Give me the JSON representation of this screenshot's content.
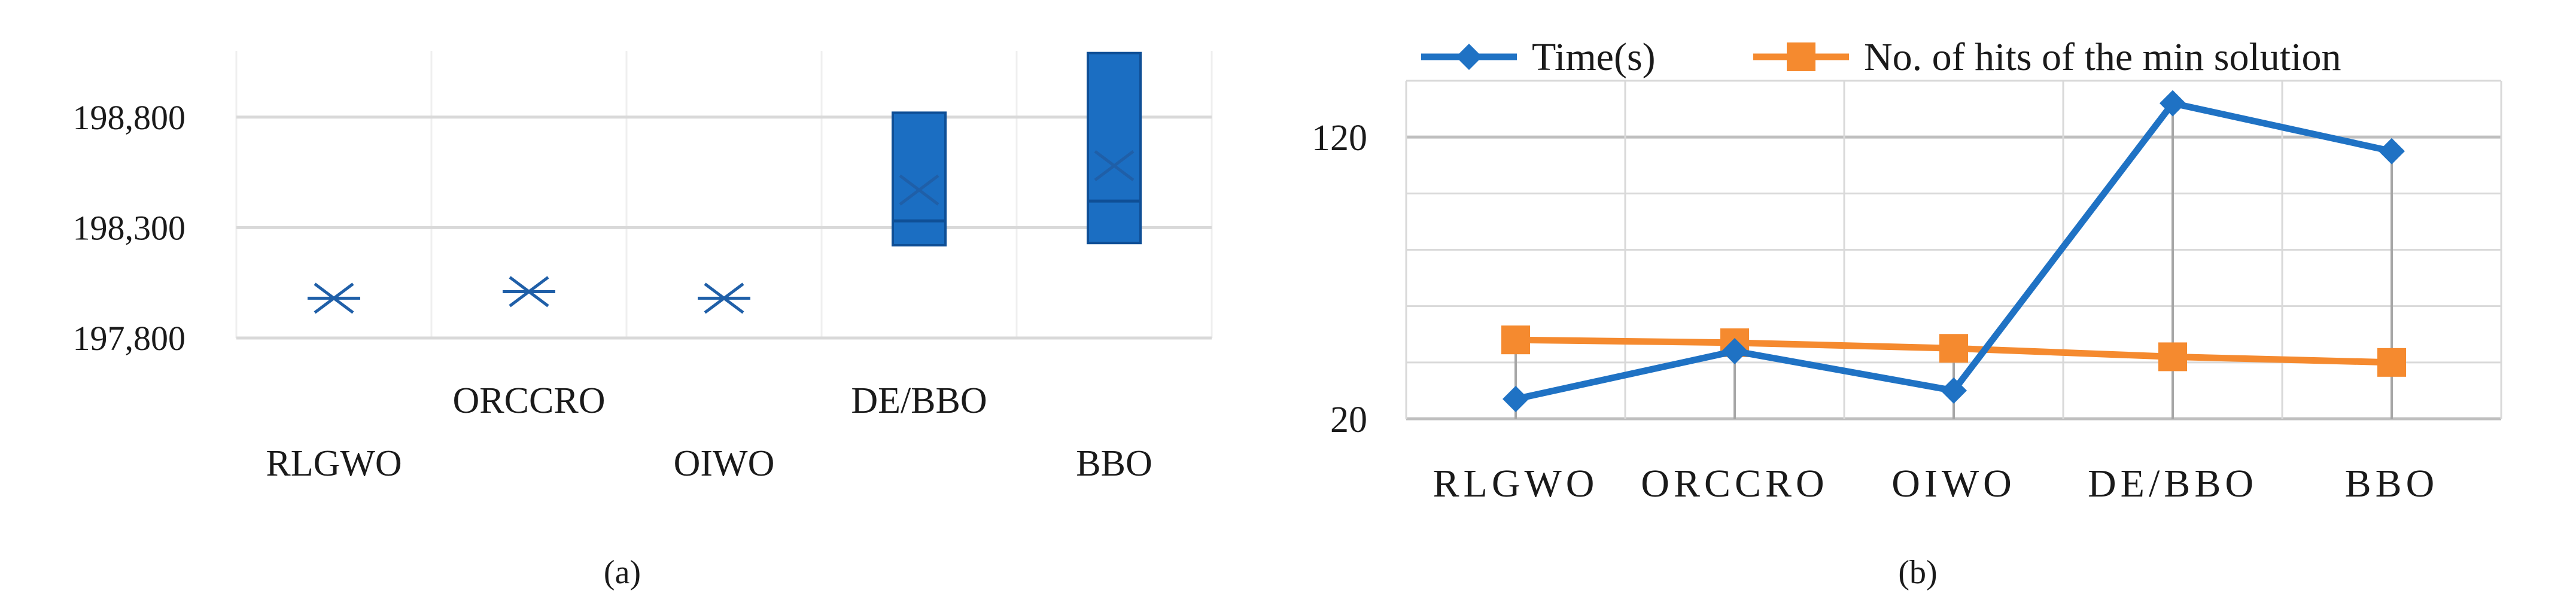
{
  "chart_data": [
    {
      "panel_label": "(a)",
      "type": "box",
      "categories": [
        "RLGWO",
        "ORCCRO",
        "OIWO",
        "DE/BBO",
        "BBO"
      ],
      "series": [
        {
          "values": [
            {
              "min": 197980,
              "q1": 197980,
              "median": 197980,
              "q3": 197980,
              "max": 197980,
              "mean": 197980
            },
            {
              "min": 198010,
              "q1": 198010,
              "median": 198010,
              "q3": 198010,
              "max": 198010,
              "mean": 198010
            },
            {
              "min": 197980,
              "q1": 197980,
              "median": 197980,
              "q3": 197980,
              "max": 197980,
              "mean": 197980
            },
            {
              "min": 198220,
              "q1": 198220,
              "median": 198330,
              "q3": 198820,
              "max": 198820,
              "mean": 198470
            },
            {
              "min": 198230,
              "q1": 198230,
              "median": 198420,
              "q3": 199090,
              "max": 199090,
              "mean": 198580
            }
          ]
        }
      ],
      "y_ticks": [
        "197,800",
        "198,300",
        "198,800"
      ],
      "y_tick_values": [
        197800,
        198300,
        198800
      ],
      "ylim": [
        197800,
        199100
      ],
      "grid": true,
      "colors": {
        "box": "#1b6ec2",
        "box_edge": "#0f4f96",
        "marker": "#1f5fa8",
        "grid": "#d9d9d9"
      }
    },
    {
      "panel_label": "(b)",
      "type": "line",
      "categories": [
        "RLGWO",
        "ORCCRO",
        "OIWO",
        "DE/BBO",
        "BBO"
      ],
      "series": [
        {
          "name": "Time(s)",
          "color": "#1f72c4",
          "marker": "diamond",
          "values": [
            27,
            44,
            30,
            132,
            115
          ]
        },
        {
          "name": "No. of hits of the min solution",
          "color": "#f58a2f",
          "marker": "square",
          "values": [
            48,
            47,
            45,
            42,
            40
          ]
        }
      ],
      "y_ticks": [
        "20",
        "120"
      ],
      "y_tick_values": [
        20,
        120
      ],
      "ylim": [
        20,
        140
      ],
      "legend": "top",
      "grid": true,
      "colors": {
        "grid": "#d9d9d9",
        "drop_line": "#a6a6a6"
      }
    }
  ]
}
